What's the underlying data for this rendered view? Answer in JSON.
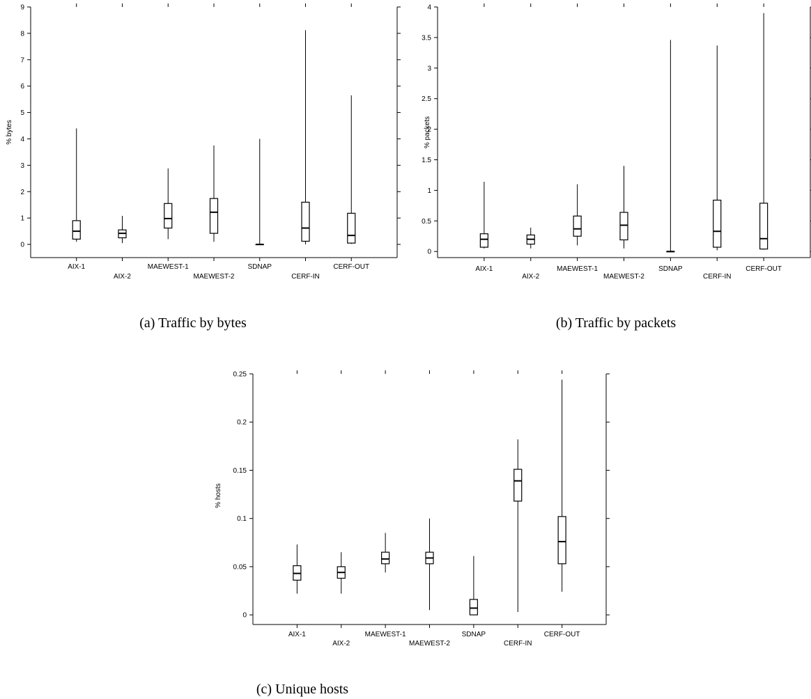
{
  "chart_data": [
    {
      "type": "box",
      "caption": "(a) Traffic by bytes",
      "ylabel": "% bytes",
      "ylim": [
        -0.5,
        9
      ],
      "yticks": [
        "0",
        "1",
        "2",
        "3",
        "4",
        "5",
        "6",
        "7",
        "8",
        "9"
      ],
      "categories": [
        "AIX-1",
        "AIX-2",
        "MAEWEST-1",
        "MAEWEST-2",
        "SDNAP",
        "CERF-IN",
        "CERF-OUT"
      ],
      "boxes": [
        {
          "min": 0.1,
          "q1": 0.2,
          "median": 0.5,
          "q3": 0.9,
          "max": 4.4
        },
        {
          "min": 0.05,
          "q1": 0.25,
          "median": 0.42,
          "q3": 0.55,
          "max": 1.08
        },
        {
          "min": 0.2,
          "q1": 0.62,
          "median": 0.98,
          "q3": 1.55,
          "max": 2.88
        },
        {
          "min": 0.1,
          "q1": 0.42,
          "median": 1.22,
          "q3": 1.74,
          "max": 3.75
        },
        {
          "min": 0.0,
          "q1": 0.0,
          "median": 0.0,
          "q3": 0.0,
          "max": 4.0
        },
        {
          "min": 0.0,
          "q1": 0.12,
          "median": 0.62,
          "q3": 1.6,
          "max": 8.12
        },
        {
          "min": 0.02,
          "q1": 0.05,
          "median": 0.34,
          "q3": 1.18,
          "max": 5.65
        }
      ]
    },
    {
      "type": "box",
      "caption": "(b) Traffic by packets",
      "ylabel": "% packets",
      "ylim": [
        -0.1,
        4
      ],
      "yticks": [
        "0",
        "0.5",
        "1",
        "1.5",
        "2",
        "2.5",
        "3",
        "3.5",
        "4"
      ],
      "categories": [
        "AIX-1",
        "AIX-2",
        "MAEWEST-1",
        "MAEWEST-2",
        "SDNAP",
        "CERF-IN",
        "CERF-OUT"
      ],
      "boxes": [
        {
          "min": 0.05,
          "q1": 0.07,
          "median": 0.2,
          "q3": 0.29,
          "max": 1.14
        },
        {
          "min": 0.05,
          "q1": 0.12,
          "median": 0.2,
          "q3": 0.27,
          "max": 0.39
        },
        {
          "min": 0.1,
          "q1": 0.25,
          "median": 0.37,
          "q3": 0.58,
          "max": 1.1
        },
        {
          "min": 0.05,
          "q1": 0.19,
          "median": 0.43,
          "q3": 0.64,
          "max": 1.4
        },
        {
          "min": 0.0,
          "q1": 0.0,
          "median": 0.0,
          "q3": 0.0,
          "max": 3.46
        },
        {
          "min": 0.02,
          "q1": 0.07,
          "median": 0.33,
          "q3": 0.84,
          "max": 3.37
        },
        {
          "min": 0.03,
          "q1": 0.04,
          "median": 0.21,
          "q3": 0.79,
          "max": 3.9
        }
      ]
    },
    {
      "type": "box",
      "caption": "(c) Unique hosts",
      "ylabel": "% hosts",
      "ylim": [
        -0.01,
        0.25
      ],
      "yticks": [
        "0",
        "0.05",
        "0.1",
        "0.15",
        "0.2",
        "0.25"
      ],
      "categories": [
        "AIX-1",
        "AIX-2",
        "MAEWEST-1",
        "MAEWEST-2",
        "SDNAP",
        "CERF-IN",
        "CERF-OUT"
      ],
      "boxes": [
        {
          "min": 0.022,
          "q1": 0.036,
          "median": 0.043,
          "q3": 0.051,
          "max": 0.073
        },
        {
          "min": 0.022,
          "q1": 0.038,
          "median": 0.044,
          "q3": 0.05,
          "max": 0.065
        },
        {
          "min": 0.044,
          "q1": 0.053,
          "median": 0.058,
          "q3": 0.065,
          "max": 0.085
        },
        {
          "min": 0.005,
          "q1": 0.053,
          "median": 0.059,
          "q3": 0.065,
          "max": 0.1
        },
        {
          "min": 0.0,
          "q1": 0.0,
          "median": 0.007,
          "q3": 0.016,
          "max": 0.061
        },
        {
          "min": 0.003,
          "q1": 0.118,
          "median": 0.139,
          "q3": 0.151,
          "max": 0.182
        },
        {
          "min": 0.024,
          "q1": 0.053,
          "median": 0.076,
          "q3": 0.102,
          "max": 0.244
        }
      ]
    }
  ]
}
